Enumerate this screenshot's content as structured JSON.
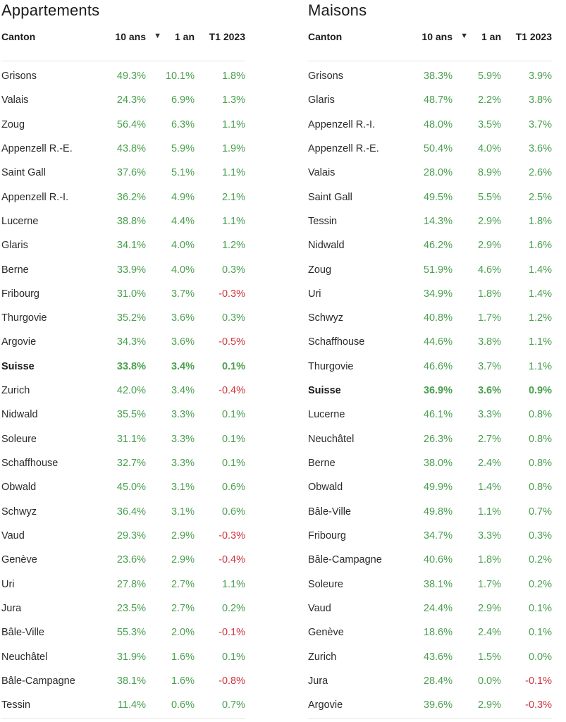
{
  "colors": {
    "positive": "#4aa04f",
    "negative": "#d0353d"
  },
  "icons": {
    "sort": "sort-descending-triangle"
  },
  "sort_glyph": "▼",
  "tables": [
    {
      "title": "Appartements",
      "columns": {
        "canton": "Canton",
        "ten": "10 ans",
        "one": "1 an",
        "t1": "T1 2023"
      },
      "rows": [
        {
          "canton": "Grisons",
          "ten": "49.3%",
          "one": "10.1%",
          "t1": "1.8%"
        },
        {
          "canton": "Valais",
          "ten": "24.3%",
          "one": "6.9%",
          "t1": "1.3%"
        },
        {
          "canton": "Zoug",
          "ten": "56.4%",
          "one": "6.3%",
          "t1": "1.1%"
        },
        {
          "canton": "Appenzell R.-E.",
          "ten": "43.8%",
          "one": "5.9%",
          "t1": "1.9%"
        },
        {
          "canton": "Saint Gall",
          "ten": "37.6%",
          "one": "5.1%",
          "t1": "1.1%"
        },
        {
          "canton": "Appenzell R.-I.",
          "ten": "36.2%",
          "one": "4.9%",
          "t1": "2.1%"
        },
        {
          "canton": "Lucerne",
          "ten": "38.8%",
          "one": "4.4%",
          "t1": "1.1%"
        },
        {
          "canton": "Glaris",
          "ten": "34.1%",
          "one": "4.0%",
          "t1": "1.2%"
        },
        {
          "canton": "Berne",
          "ten": "33.9%",
          "one": "4.0%",
          "t1": "0.3%"
        },
        {
          "canton": "Fribourg",
          "ten": "31.0%",
          "one": "3.7%",
          "t1": "-0.3%"
        },
        {
          "canton": "Thurgovie",
          "ten": "35.2%",
          "one": "3.6%",
          "t1": "0.3%"
        },
        {
          "canton": "Argovie",
          "ten": "34.3%",
          "one": "3.6%",
          "t1": "-0.5%"
        },
        {
          "canton": "Suisse",
          "ten": "33.8%",
          "one": "3.4%",
          "t1": "0.1%",
          "bold": true
        },
        {
          "canton": "Zurich",
          "ten": "42.0%",
          "one": "3.4%",
          "t1": "-0.4%"
        },
        {
          "canton": "Nidwald",
          "ten": "35.5%",
          "one": "3.3%",
          "t1": "0.1%"
        },
        {
          "canton": "Soleure",
          "ten": "31.1%",
          "one": "3.3%",
          "t1": "0.1%"
        },
        {
          "canton": "Schaffhouse",
          "ten": "32.7%",
          "one": "3.3%",
          "t1": "0.1%"
        },
        {
          "canton": "Obwald",
          "ten": "45.0%",
          "one": "3.1%",
          "t1": "0.6%"
        },
        {
          "canton": "Schwyz",
          "ten": "36.4%",
          "one": "3.1%",
          "t1": "0.6%"
        },
        {
          "canton": "Vaud",
          "ten": "29.3%",
          "one": "2.9%",
          "t1": "-0.3%"
        },
        {
          "canton": "Genève",
          "ten": "23.6%",
          "one": "2.9%",
          "t1": "-0.4%"
        },
        {
          "canton": "Uri",
          "ten": "27.8%",
          "one": "2.7%",
          "t1": "1.1%"
        },
        {
          "canton": "Jura",
          "ten": "23.5%",
          "one": "2.7%",
          "t1": "0.2%"
        },
        {
          "canton": "Bâle-Ville",
          "ten": "55.3%",
          "one": "2.0%",
          "t1": "-0.1%"
        },
        {
          "canton": "Neuchâtel",
          "ten": "31.9%",
          "one": "1.6%",
          "t1": "0.1%"
        },
        {
          "canton": "Bâle-Campagne",
          "ten": "38.1%",
          "one": "1.6%",
          "t1": "-0.8%"
        },
        {
          "canton": "Tessin",
          "ten": "11.4%",
          "one": "0.6%",
          "t1": "0.7%"
        }
      ]
    },
    {
      "title": "Maisons",
      "columns": {
        "canton": "Canton",
        "ten": "10 ans",
        "one": "1 an",
        "t1": "T1 2023"
      },
      "rows": [
        {
          "canton": "Grisons",
          "ten": "38.3%",
          "one": "5.9%",
          "t1": "3.9%"
        },
        {
          "canton": "Glaris",
          "ten": "48.7%",
          "one": "2.2%",
          "t1": "3.8%"
        },
        {
          "canton": "Appenzell R.-I.",
          "ten": "48.0%",
          "one": "3.5%",
          "t1": "3.7%"
        },
        {
          "canton": "Appenzell R.-E.",
          "ten": "50.4%",
          "one": "4.0%",
          "t1": "3.6%"
        },
        {
          "canton": "Valais",
          "ten": "28.0%",
          "one": "8.9%",
          "t1": "2.6%"
        },
        {
          "canton": "Saint Gall",
          "ten": "49.5%",
          "one": "5.5%",
          "t1": "2.5%"
        },
        {
          "canton": "Tessin",
          "ten": "14.3%",
          "one": "2.9%",
          "t1": "1.8%"
        },
        {
          "canton": "Nidwald",
          "ten": "46.2%",
          "one": "2.9%",
          "t1": "1.6%"
        },
        {
          "canton": "Zoug",
          "ten": "51.9%",
          "one": "4.6%",
          "t1": "1.4%"
        },
        {
          "canton": "Uri",
          "ten": "34.9%",
          "one": "1.8%",
          "t1": "1.4%"
        },
        {
          "canton": "Schwyz",
          "ten": "40.8%",
          "one": "1.7%",
          "t1": "1.2%"
        },
        {
          "canton": "Schaffhouse",
          "ten": "44.6%",
          "one": "3.8%",
          "t1": "1.1%"
        },
        {
          "canton": "Thurgovie",
          "ten": "46.6%",
          "one": "3.7%",
          "t1": "1.1%"
        },
        {
          "canton": "Suisse",
          "ten": "36.9%",
          "one": "3.6%",
          "t1": "0.9%",
          "bold": true
        },
        {
          "canton": "Lucerne",
          "ten": "46.1%",
          "one": "3.3%",
          "t1": "0.8%"
        },
        {
          "canton": "Neuchâtel",
          "ten": "26.3%",
          "one": "2.7%",
          "t1": "0.8%"
        },
        {
          "canton": "Berne",
          "ten": "38.0%",
          "one": "2.4%",
          "t1": "0.8%"
        },
        {
          "canton": "Obwald",
          "ten": "49.9%",
          "one": "1.4%",
          "t1": "0.8%"
        },
        {
          "canton": "Bâle-Ville",
          "ten": "49.8%",
          "one": "1.1%",
          "t1": "0.7%"
        },
        {
          "canton": "Fribourg",
          "ten": "34.7%",
          "one": "3.3%",
          "t1": "0.3%"
        },
        {
          "canton": "Bâle-Campagne",
          "ten": "40.6%",
          "one": "1.8%",
          "t1": "0.2%"
        },
        {
          "canton": "Soleure",
          "ten": "38.1%",
          "one": "1.7%",
          "t1": "0.2%"
        },
        {
          "canton": "Vaud",
          "ten": "24.4%",
          "one": "2.9%",
          "t1": "0.1%"
        },
        {
          "canton": "Genève",
          "ten": "18.6%",
          "one": "2.4%",
          "t1": "0.1%"
        },
        {
          "canton": "Zurich",
          "ten": "43.6%",
          "one": "1.5%",
          "t1": "0.0%"
        },
        {
          "canton": "Jura",
          "ten": "28.4%",
          "one": "0.0%",
          "t1": "-0.1%"
        },
        {
          "canton": "Argovie",
          "ten": "39.6%",
          "one": "2.9%",
          "t1": "-0.3%"
        }
      ]
    }
  ]
}
